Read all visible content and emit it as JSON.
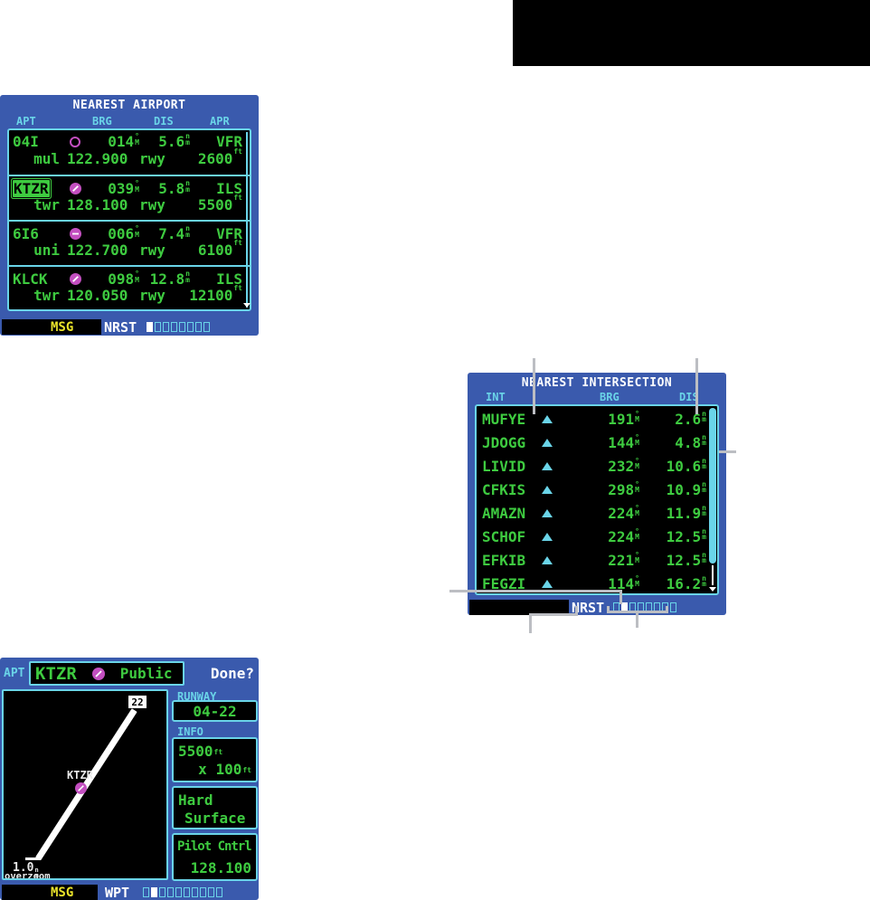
{
  "colors": {
    "frame_blue": "#3a5aad",
    "cyan": "#6ad4e8",
    "green": "#3ecb40",
    "magenta": "#c34fc0",
    "yellow": "#eae32a",
    "callout_gray": "#bcbec3"
  },
  "units": {
    "degrees": "°",
    "degrees_ref": "M",
    "nautical_top": "n",
    "nautical_bottom": "m",
    "feet": "ft"
  },
  "nearest_airport": {
    "title": "NEAREST AIRPORT",
    "columns": {
      "apt": "APT",
      "brg": "BRG",
      "dis": "DIS",
      "apr": "APR"
    },
    "rows": [
      {
        "apt": "04I",
        "brg": "014",
        "dis": "5.6",
        "apr": "VFR",
        "freq_type": "mul",
        "freq": "122.900",
        "rwy": "rwy",
        "length": "2600"
      },
      {
        "apt": "KTZR",
        "brg": "039",
        "dis": "5.8",
        "apr": "ILS",
        "freq_type": "twr",
        "freq": "128.100",
        "rwy": "rwy",
        "length": "5500"
      },
      {
        "apt": "6I6",
        "brg": "006",
        "dis": "7.4",
        "apr": "VFR",
        "freq_type": "uni",
        "freq": "122.700",
        "rwy": "rwy",
        "length": "6100"
      },
      {
        "apt": "KLCK",
        "brg": "098",
        "dis": "12.8",
        "apr": "ILS",
        "freq_type": "twr",
        "freq": "120.050",
        "rwy": "rwy",
        "length": "12100"
      }
    ],
    "statusbar": {
      "msg": "MSG",
      "page": "NRST",
      "indicator": {
        "count": 8,
        "active_index": 0
      }
    }
  },
  "nearest_intersection": {
    "title": "NEAREST INTERSECTION",
    "columns": {
      "int": "INT",
      "brg": "BRG",
      "dis": "DIS"
    },
    "rows": [
      {
        "id": "MUFYE",
        "brg": "191",
        "dis": "2.6"
      },
      {
        "id": "JDOGG",
        "brg": "144",
        "dis": "4.8"
      },
      {
        "id": "LIVID",
        "brg": "232",
        "dis": "10.6"
      },
      {
        "id": "CFKIS",
        "brg": "298",
        "dis": "10.9"
      },
      {
        "id": "AMAZN",
        "brg": "224",
        "dis": "11.9"
      },
      {
        "id": "SCHOF",
        "brg": "224",
        "dis": "12.5"
      },
      {
        "id": "EFKIB",
        "brg": "221",
        "dis": "12.5"
      },
      {
        "id": "FEGZI",
        "brg": "114",
        "dis": "16.2"
      }
    ],
    "statusbar": {
      "page": "NRST",
      "indicator": {
        "count": 8,
        "active_index": 1
      }
    }
  },
  "airport_page": {
    "tag": "APT",
    "ident": "KTZR",
    "use_type": "Public",
    "done": "Done?",
    "runway_label": "RUNWAY",
    "runway_designation": "04-22",
    "info_label": "INFO",
    "runway_length": "5500",
    "width_prefix": "x",
    "runway_width": "100",
    "surface_line1": "Hard",
    "surface_line2": "Surface",
    "lighting_line1": "Pilot Cntrl",
    "lighting_freq": "128.100",
    "map": {
      "runway_end": "22",
      "airport_label": "KTZR",
      "scale": "1.0",
      "overzoom": "overzoom"
    },
    "statusbar": {
      "msg": "MSG",
      "page": "WPT",
      "indicator": {
        "count": 10,
        "active_index": 1
      }
    }
  }
}
